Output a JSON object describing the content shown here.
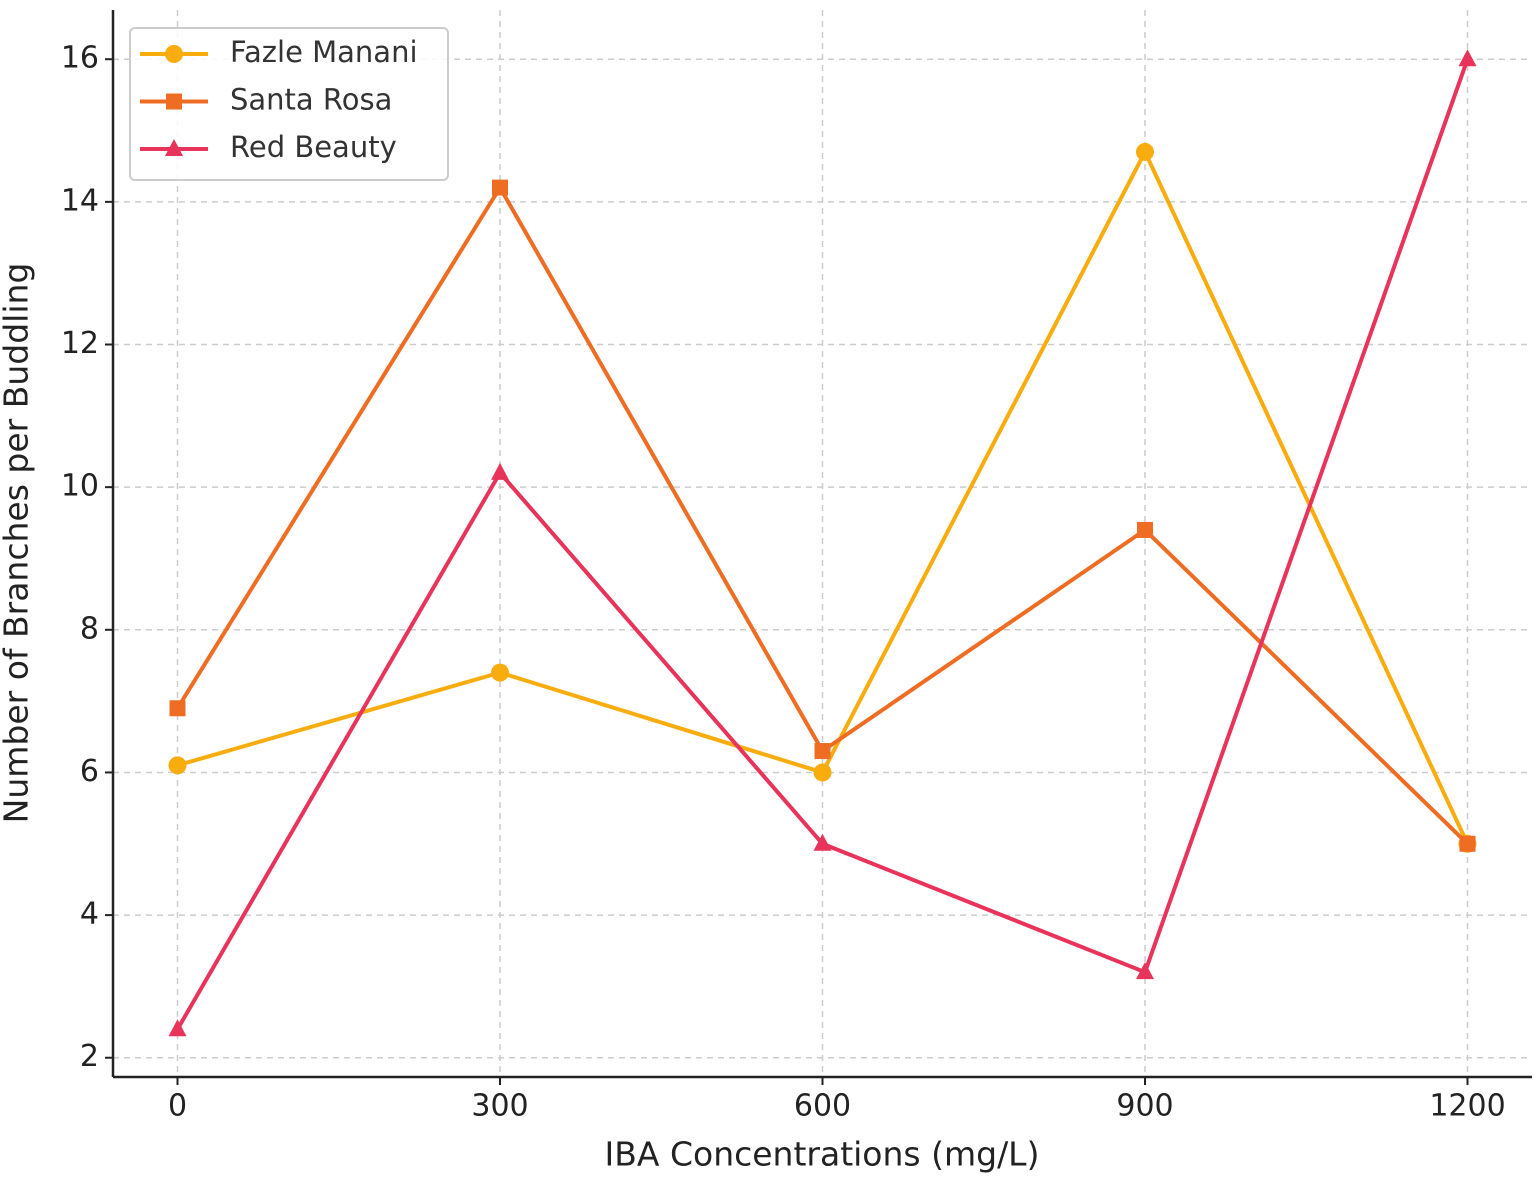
{
  "chart_data": {
    "type": "line",
    "x_label": "IBA Concentrations (mg/L)",
    "y_label": "Number of Branches per Buddling",
    "x": [
      0,
      300,
      600,
      900,
      1200
    ],
    "series": [
      {
        "name": "Fazle Manani",
        "color": "#f9ac0d",
        "marker": "circle",
        "values": [
          6.1,
          7.4,
          6.0,
          14.7,
          5.0
        ]
      },
      {
        "name": "Santa Rosa",
        "color": "#ef6c23",
        "marker": "square",
        "values": [
          6.9,
          14.2,
          6.3,
          9.4,
          5.0
        ]
      },
      {
        "name": "Red Beauty",
        "color": "#e8345a",
        "marker": "triangle",
        "values": [
          2.4,
          10.2,
          5.0,
          3.2,
          16.0
        ]
      }
    ],
    "xlim": [
      -60,
      1260
    ],
    "xticks": [
      0,
      300,
      600,
      900,
      1200
    ],
    "ylim": [
      1.73,
      16.69
    ],
    "yticks": [
      2,
      4,
      6,
      8,
      10,
      12,
      14,
      16
    ],
    "grid": true,
    "legend": "upper left"
  }
}
